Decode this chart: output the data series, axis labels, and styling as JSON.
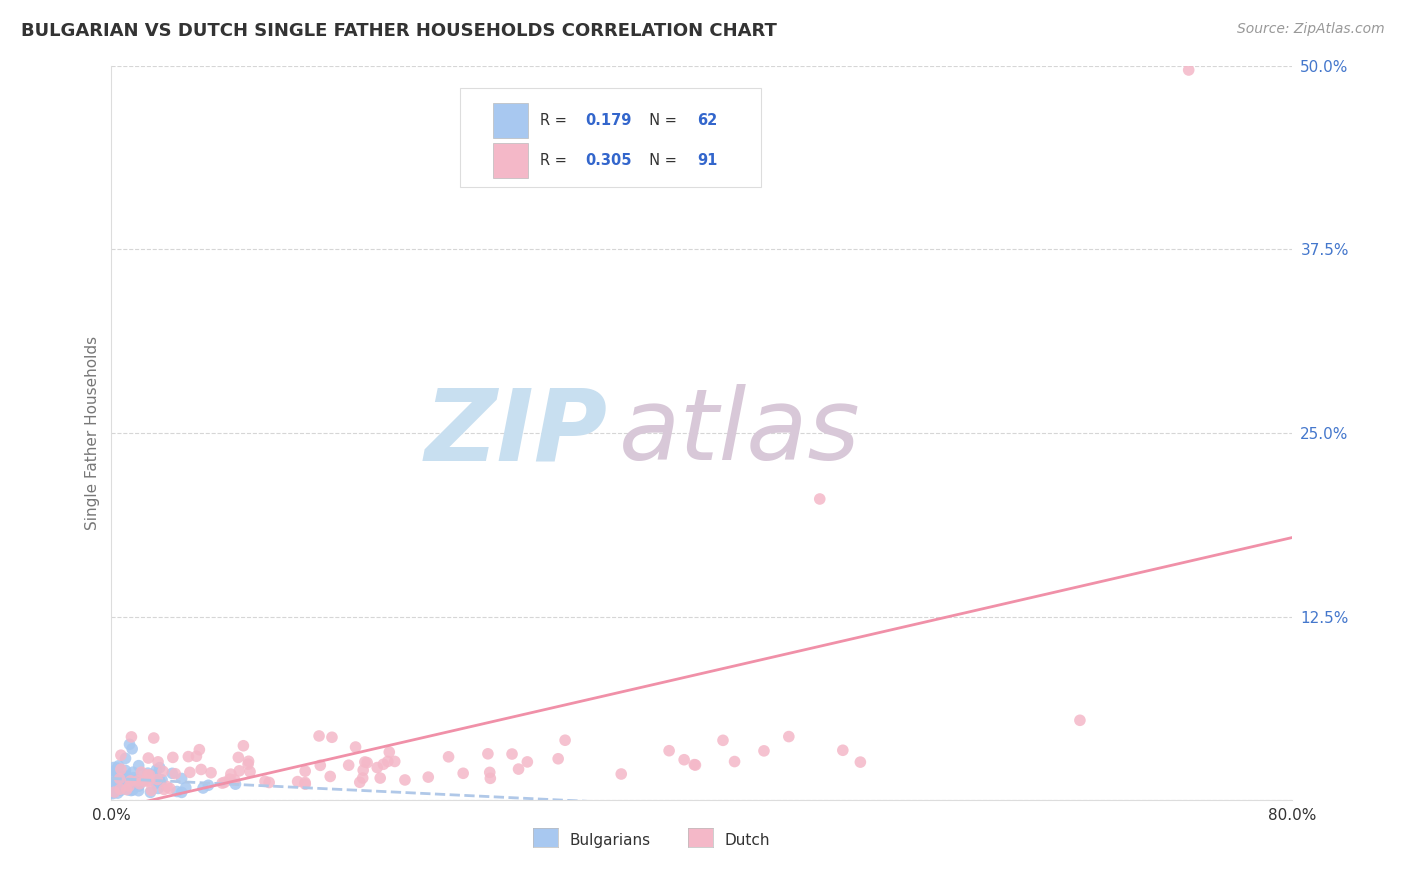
{
  "title": "BULGARIAN VS DUTCH SINGLE FATHER HOUSEHOLDS CORRELATION CHART",
  "source": "Source: ZipAtlas.com",
  "xlabel_bulgarians": "Bulgarians",
  "xlabel_dutch": "Dutch",
  "ylabel": "Single Father Households",
  "xlim": [
    0.0,
    0.8
  ],
  "ylim": [
    0.0,
    0.5
  ],
  "xticks": [
    0.0,
    0.8
  ],
  "yticks": [
    0.0,
    0.125,
    0.25,
    0.375,
    0.5
  ],
  "ytick_labels_right": [
    "50.0%",
    "37.5%",
    "25.0%",
    "12.5%",
    ""
  ],
  "xtick_labels": [
    "0.0%",
    "80.0%"
  ],
  "R_bulgarian": 0.179,
  "N_bulgarian": 62,
  "R_dutch": 0.305,
  "N_dutch": 91,
  "color_bulgarian": "#a8c8f0",
  "color_dutch": "#f4b8c8",
  "color_bulgarian_line": "#b0c8e8",
  "color_dutch_line": "#f090a8",
  "watermark_zip": "ZIP",
  "watermark_atlas": "atlas",
  "watermark_color_zip": "#c8dff0",
  "watermark_color_atlas": "#d8c8d8",
  "bg_color": "#ffffff",
  "grid_color": "#cccccc",
  "title_color": "#333333",
  "axis_label_color": "#777777",
  "tick_label_color_y": "#4477cc",
  "tick_label_color_x": "#333333",
  "legend_R_color": "#333333",
  "legend_N_color": "#3366cc",
  "seed": 99
}
